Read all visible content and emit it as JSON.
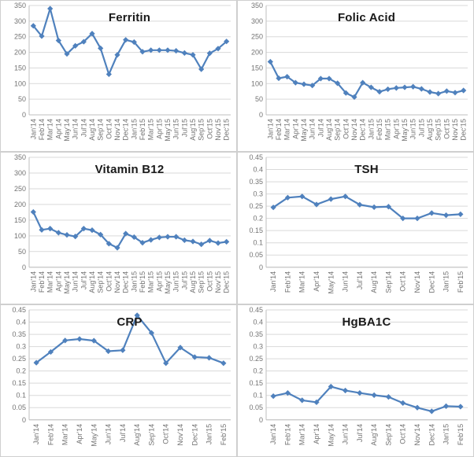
{
  "colors": {
    "line": "#4F81BD",
    "gridline": "#D9D9D9",
    "axis_line": "#BFBFBF",
    "tick_text": "#737373",
    "title_text": "#1A1A1A",
    "panel_border": "#CFCFCF",
    "background": "#FFFFFF"
  },
  "chart_data": [
    {
      "type": "line",
      "title": "Ferritin",
      "marker": "diamond",
      "categories": [
        "Jan'14",
        "Feb'14",
        "Mar'14",
        "Apr'14",
        "May'14",
        "Jun'14",
        "Jul'14",
        "Aug'14",
        "Sep'14",
        "Oct'14",
        "Nov'14",
        "Dec'14",
        "Jan'15",
        "Feb'15",
        "Mar'15",
        "Apr'15",
        "May'15",
        "Jun'15",
        "Jul'15",
        "Aug'15",
        "Sep'15",
        "Oct'15",
        "Nov'15",
        "Dec'15"
      ],
      "values": [
        285,
        252,
        340,
        238,
        195,
        221,
        234,
        260,
        213,
        130,
        192,
        240,
        233,
        202,
        207,
        207,
        207,
        205,
        198,
        192,
        146,
        197,
        212,
        235
      ],
      "ylim": [
        0,
        350
      ],
      "ytick_step": 50,
      "grid": true,
      "legend": "none"
    },
    {
      "type": "line",
      "title": "Folic Acid",
      "marker": "diamond",
      "categories": [
        "Jan'14",
        "Feb'14",
        "Mar'14",
        "Apr'14",
        "May'14",
        "Jun'14",
        "Jul'14",
        "Aug'14",
        "Sep'14",
        "Oct'14",
        "Nov'14",
        "Dec'14",
        "Jan'15",
        "Feb'15",
        "Mar'15",
        "Apr'15",
        "May'15",
        "Jun'15",
        "Jul'15",
        "Aug'15",
        "Sep'15",
        "Oct'15",
        "Nov'15",
        "Dec'15"
      ],
      "values": [
        170,
        117,
        122,
        103,
        98,
        94,
        116,
        116,
        101,
        70,
        57,
        103,
        88,
        74,
        82,
        86,
        88,
        90,
        83,
        73,
        68,
        76,
        71,
        78
      ],
      "ylim": [
        0,
        350
      ],
      "ytick_step": 50,
      "grid": true,
      "legend": "none"
    },
    {
      "type": "line",
      "title": "Vitamin B12",
      "marker": "diamond",
      "categories": [
        "Jan'14",
        "Feb'14",
        "Mar'14",
        "Apr'14",
        "May'14",
        "Jun'14",
        "Jul'14",
        "Aug'14",
        "Sep'14",
        "Oct'14",
        "Nov'14",
        "Dec'14",
        "Jan'15",
        "Feb'15",
        "Mar'15",
        "Apr'15",
        "May'15",
        "Jun'15",
        "Jul'15",
        "Aug'15",
        "Sep'15",
        "Oct'15",
        "Nov'15",
        "Dec'15"
      ],
      "values": [
        176,
        119,
        123,
        110,
        103,
        98,
        123,
        118,
        104,
        75,
        62,
        107,
        96,
        78,
        87,
        95,
        97,
        97,
        86,
        82,
        73,
        85,
        77,
        81
      ],
      "ylim": [
        0,
        350
      ],
      "ytick_step": 50,
      "grid": true,
      "legend": "none"
    },
    {
      "type": "line",
      "title": "TSH",
      "marker": "diamond",
      "categories": [
        "Jan'14",
        "Feb'14",
        "Mar'14",
        "Apr'14",
        "May'14",
        "Jun'14",
        "Jul'14",
        "Aug'14",
        "Sep'14",
        "Oct'14",
        "Nov'14",
        "Dec'14",
        "Jan'15",
        "Feb'15"
      ],
      "values": [
        0.245,
        0.285,
        0.29,
        0.257,
        0.279,
        0.29,
        0.256,
        0.246,
        0.248,
        0.2,
        0.2,
        0.222,
        0.213,
        0.217
      ],
      "ylim": [
        0,
        0.45
      ],
      "ytick_step": 0.05,
      "grid": true,
      "legend": "none"
    },
    {
      "type": "line",
      "title": "CRP",
      "marker": "diamond",
      "categories": [
        "Jan'14",
        "Feb'14",
        "Mar'14",
        "Apr'14",
        "May'14",
        "Jun'14",
        "Jul'14",
        "Aug'14",
        "Sep'14",
        "Oct'14",
        "Nov'14",
        "Dec'14",
        "Jan'15",
        "Feb'15"
      ],
      "values": [
        0.234,
        0.278,
        0.325,
        0.331,
        0.324,
        0.281,
        0.285,
        0.428,
        0.356,
        0.232,
        0.296,
        0.257,
        0.254,
        0.232
      ],
      "ylim": [
        0,
        0.45
      ],
      "ytick_step": 0.05,
      "grid": true,
      "legend": "none"
    },
    {
      "type": "line",
      "title": "HgBA1C",
      "marker": "diamond",
      "categories": [
        "Jan'14",
        "Feb'14",
        "Mar'14",
        "Apr'14",
        "May'14",
        "Jun'14",
        "Jul'14",
        "Aug'14",
        "Sep'14",
        "Oct'14",
        "Nov'14",
        "Dec'14",
        "Jan'15",
        "Feb'15"
      ],
      "values": [
        0.097,
        0.11,
        0.08,
        0.072,
        0.136,
        0.12,
        0.11,
        0.101,
        0.094,
        0.069,
        0.05,
        0.035,
        0.056,
        0.054
      ],
      "ylim": [
        0,
        0.45
      ],
      "ytick_step": 0.05,
      "grid": true,
      "legend": "none"
    }
  ]
}
